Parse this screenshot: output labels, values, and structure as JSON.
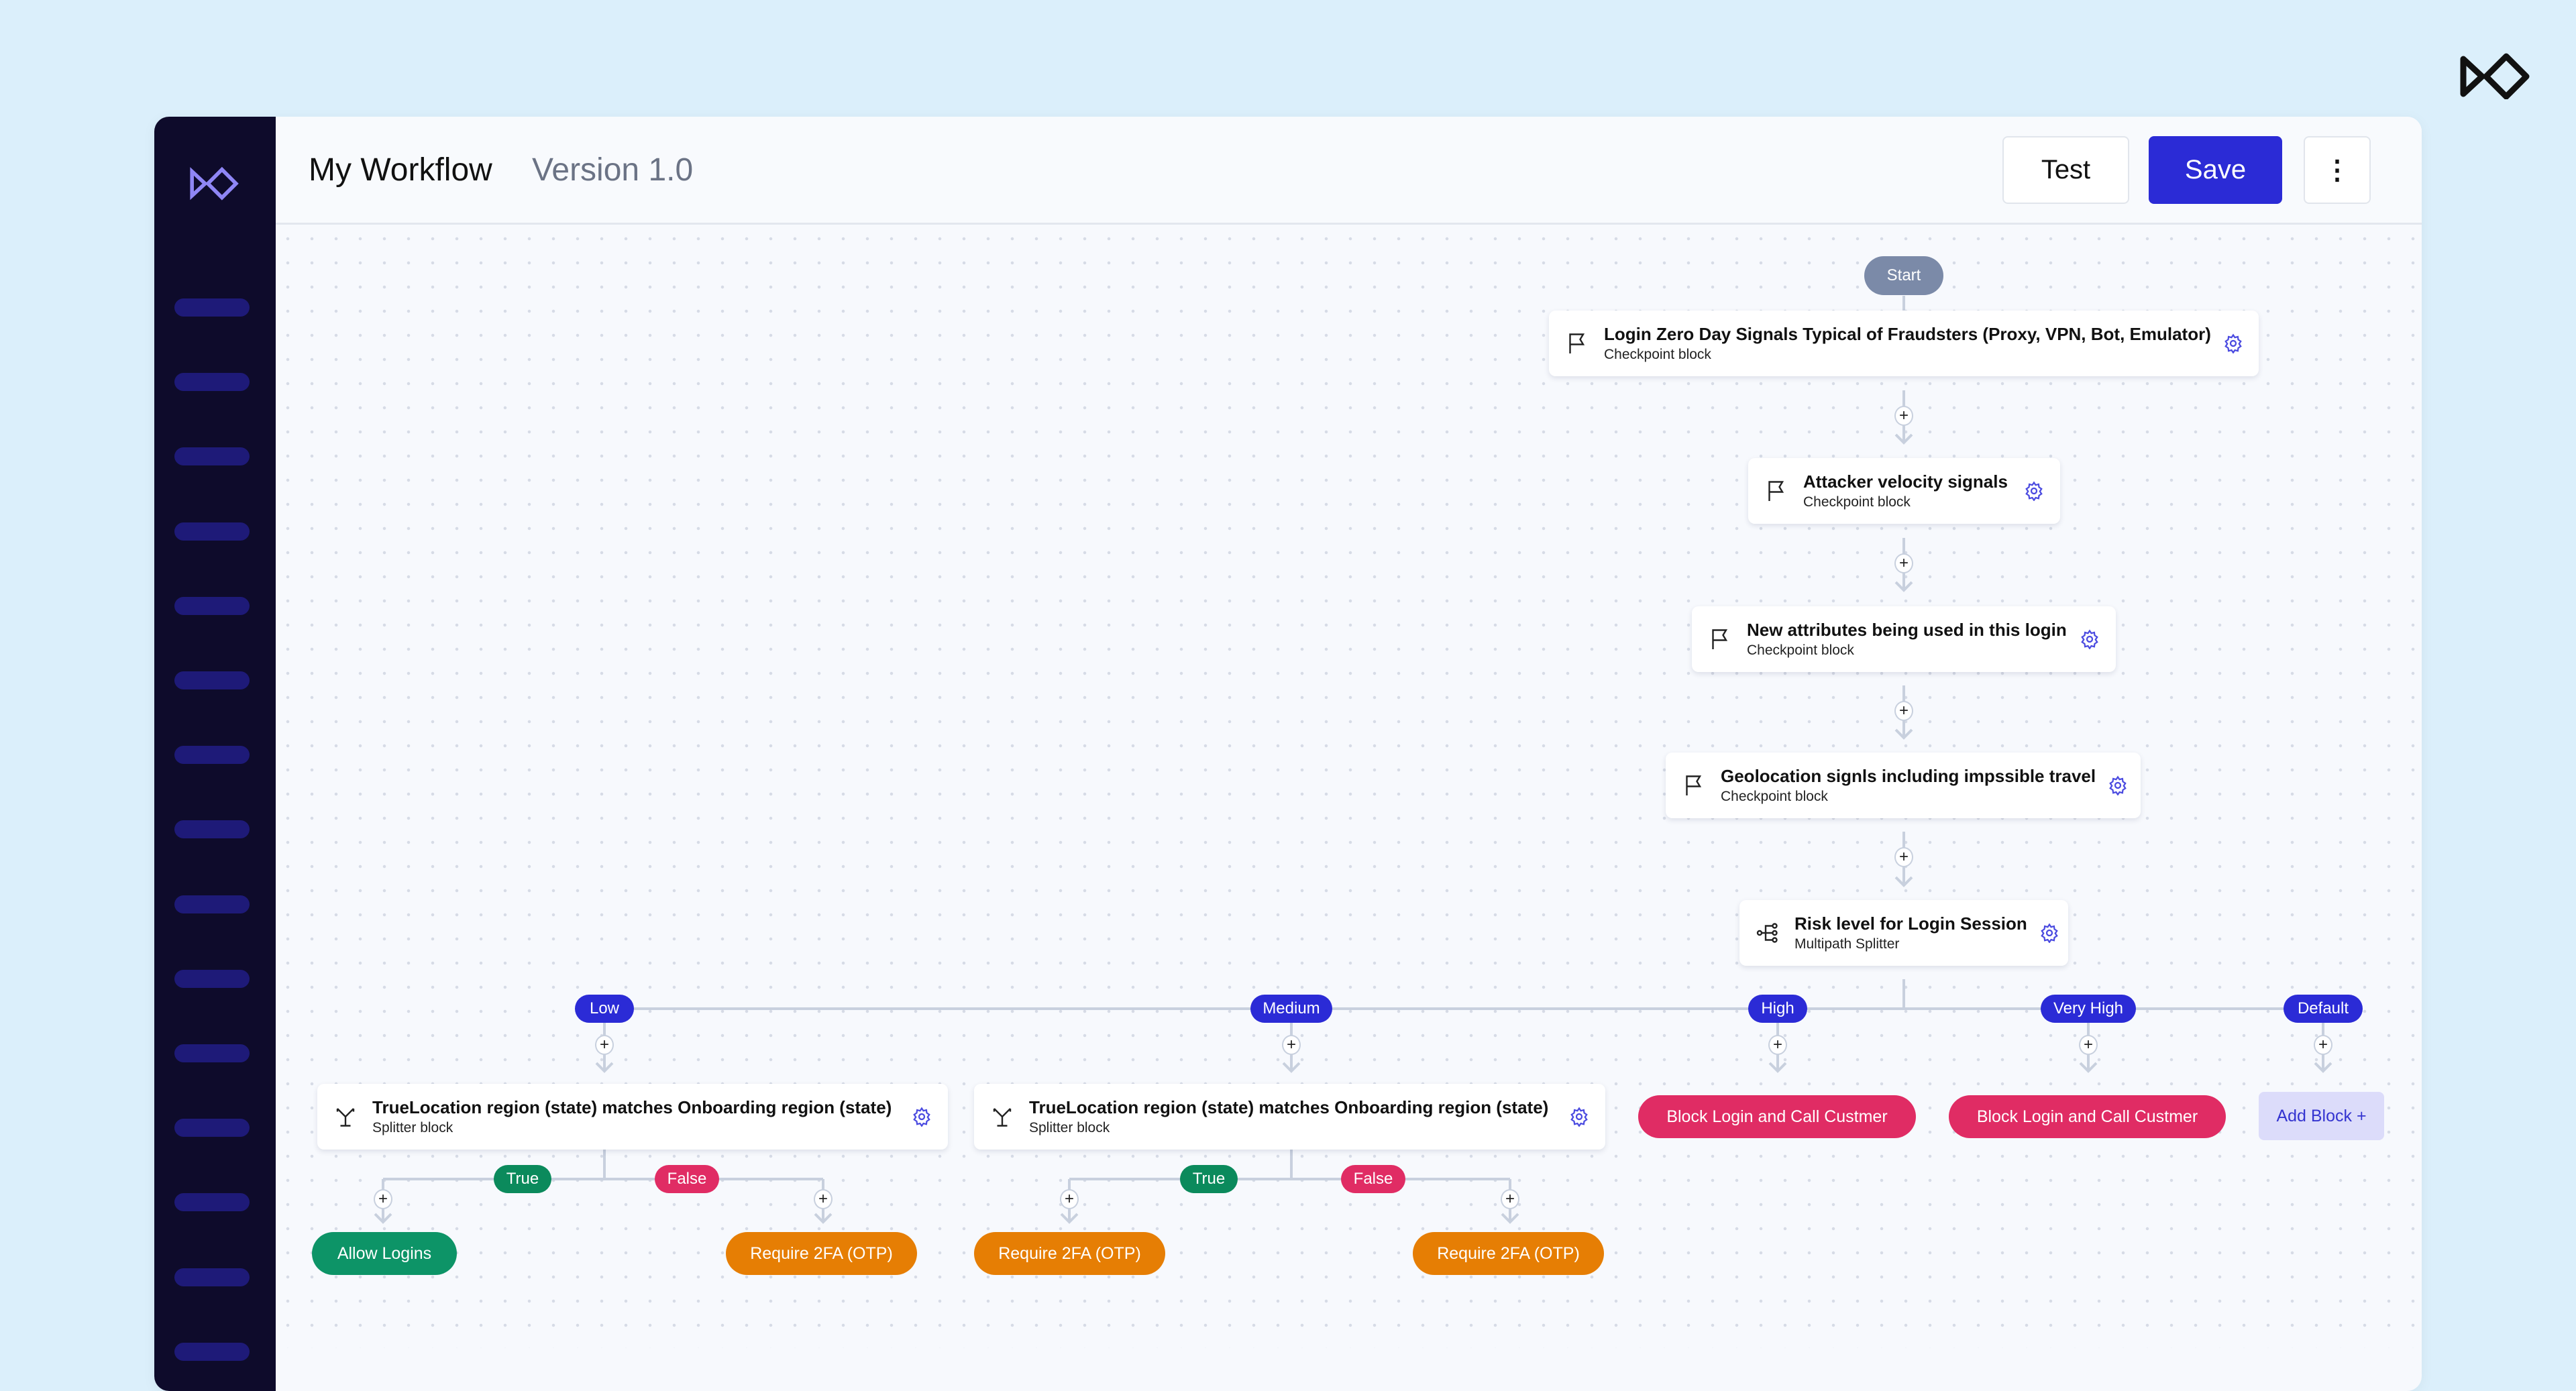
{
  "header": {
    "title": "My Workflow",
    "version": "Version 1.0",
    "test_label": "Test",
    "save_label": "Save",
    "more_icon": "more-vertical-icon"
  },
  "colors": {
    "primary": "#2b2bd6",
    "sidebar": "#0e0b2b",
    "true": "#0b8a5c",
    "false": "#e02c64",
    "allow": "#0d9467",
    "otp": "#e67e04",
    "block": "#e02c64",
    "start": "#7b8aa8"
  },
  "start": "Start",
  "checkpoints": [
    {
      "title": "Login Zero Day Signals Typical of Fraudsters (Proxy, VPN, Bot, Emulator)",
      "type": "Checkpoint block"
    },
    {
      "title": "Attacker velocity signals",
      "type": "Checkpoint block"
    },
    {
      "title": "New attributes being used in this login",
      "type": "Checkpoint block"
    },
    {
      "title": "Geolocation signls including impssible travel",
      "type": "Checkpoint block"
    }
  ],
  "splitter": {
    "title": "Risk level for Login Session",
    "type": "Multipath Splitter"
  },
  "paths": [
    "Low",
    "Medium",
    "High",
    "Very High",
    "Default"
  ],
  "branches": [
    {
      "title": "TrueLocation region (state) matches Onboarding region (state)",
      "type": "Splitter block",
      "true_label": "True",
      "false_label": "False",
      "true_action": "Allow Logins",
      "false_action": "Require 2FA (OTP)"
    },
    {
      "title": "TrueLocation region (state) matches Onboarding region (state)",
      "type": "Splitter block",
      "true_label": "True",
      "false_label": "False",
      "true_action": "Require 2FA (OTP)",
      "false_action": "Require 2FA (OTP)"
    }
  ],
  "high_action": "Block Login and Call Custmer",
  "very_high_action": "Block Login and Call Custmer",
  "add_block": "Add Block +",
  "plus": "+"
}
